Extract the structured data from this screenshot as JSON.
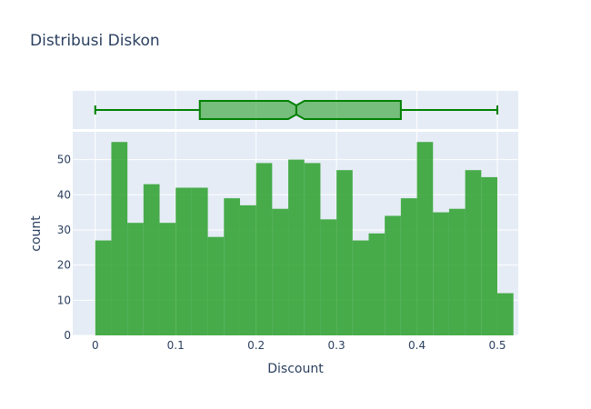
{
  "chart_data": {
    "type": "histogram",
    "title": "Distribusi Diskon",
    "xlabel": "Discount",
    "ylabel": "count",
    "bin_width": 0.02,
    "bin_starts": [
      0,
      0.02,
      0.04,
      0.06,
      0.08,
      0.1,
      0.12,
      0.14,
      0.16,
      0.18,
      0.2,
      0.22,
      0.24,
      0.26,
      0.28,
      0.3,
      0.32,
      0.34,
      0.36,
      0.38,
      0.4,
      0.42,
      0.44,
      0.46,
      0.48,
      0.5
    ],
    "counts": [
      27,
      55,
      32,
      43,
      32,
      42,
      42,
      28,
      39,
      37,
      49,
      36,
      50,
      49,
      33,
      47,
      27,
      29,
      34,
      39,
      55,
      35,
      36,
      47,
      45,
      12
    ],
    "x_ticks": [
      "0",
      "0.1",
      "0.2",
      "0.3",
      "0.4",
      "0.5"
    ],
    "x_tick_values": [
      0,
      0.1,
      0.2,
      0.3,
      0.4,
      0.5
    ],
    "y_ticks": [
      "0",
      "10",
      "20",
      "30",
      "40",
      "50"
    ],
    "y_tick_values": [
      0,
      10,
      20,
      30,
      40,
      50
    ],
    "xlim": [
      -0.028,
      0.526
    ],
    "ylim": [
      0,
      57.9
    ],
    "grid": true,
    "marginal_box": {
      "min": 0,
      "q1": 0.13,
      "median": 0.25,
      "q3": 0.38,
      "max": 0.5,
      "notch_low": 0.24,
      "notch_high": 0.26
    },
    "colors": {
      "bar": "#2ca02c",
      "box_line": "#008000",
      "plot_bg": "#e5ecf6",
      "grid": "#ffffff",
      "text": "#2a3f5f"
    }
  }
}
